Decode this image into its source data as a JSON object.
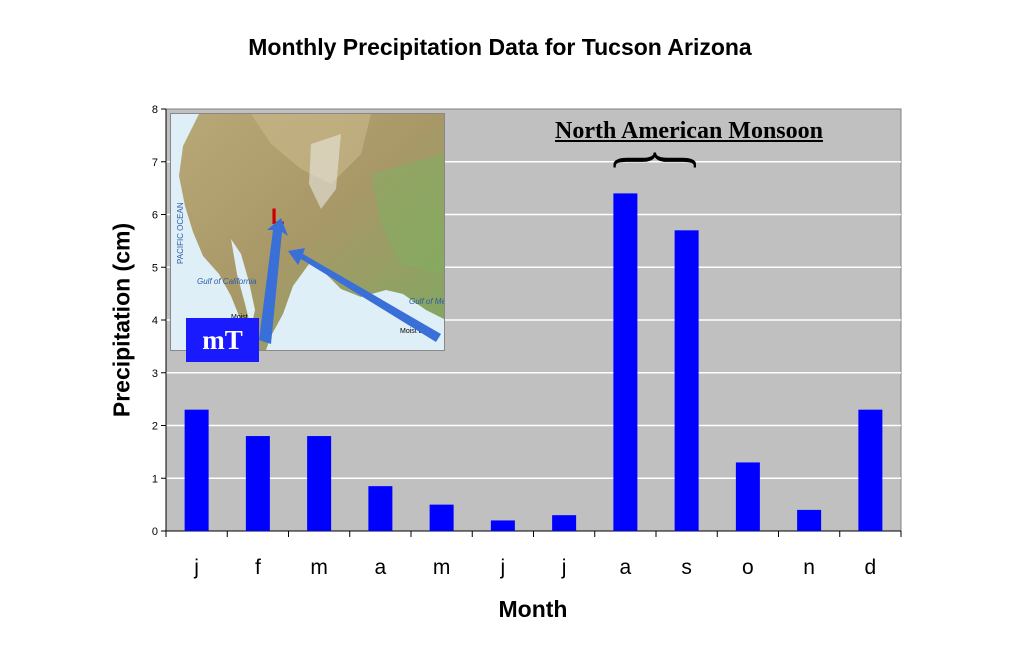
{
  "chart_data": {
    "type": "bar",
    "title": "Monthly Precipitation Data for Tucson Arizona",
    "xlabel": "Month",
    "ylabel": "Precipitation (cm)",
    "categories": [
      "j",
      "f",
      "m",
      "a",
      "m",
      "j",
      "j",
      "a",
      "s",
      "o",
      "n",
      "d"
    ],
    "values": [
      2.3,
      1.8,
      1.8,
      0.85,
      0.5,
      0.2,
      0.3,
      6.4,
      5.7,
      1.3,
      0.4,
      2.3
    ],
    "ylim": [
      0,
      8
    ],
    "yticks": [
      "0",
      "1",
      "2",
      "3",
      "4",
      "5",
      "6",
      "7",
      "8"
    ],
    "grid": true,
    "bar_color": "#0000ff",
    "plot_background": "#c0c0c0",
    "annotations": {
      "monsoon": "North American Monsoon",
      "air_mass": "mT",
      "map_low": "L",
      "map_labels": [
        "PACIFIC OCEAN",
        "Gulf of California",
        "Gulf of Mexico",
        "Moist",
        "Moist air"
      ]
    }
  }
}
